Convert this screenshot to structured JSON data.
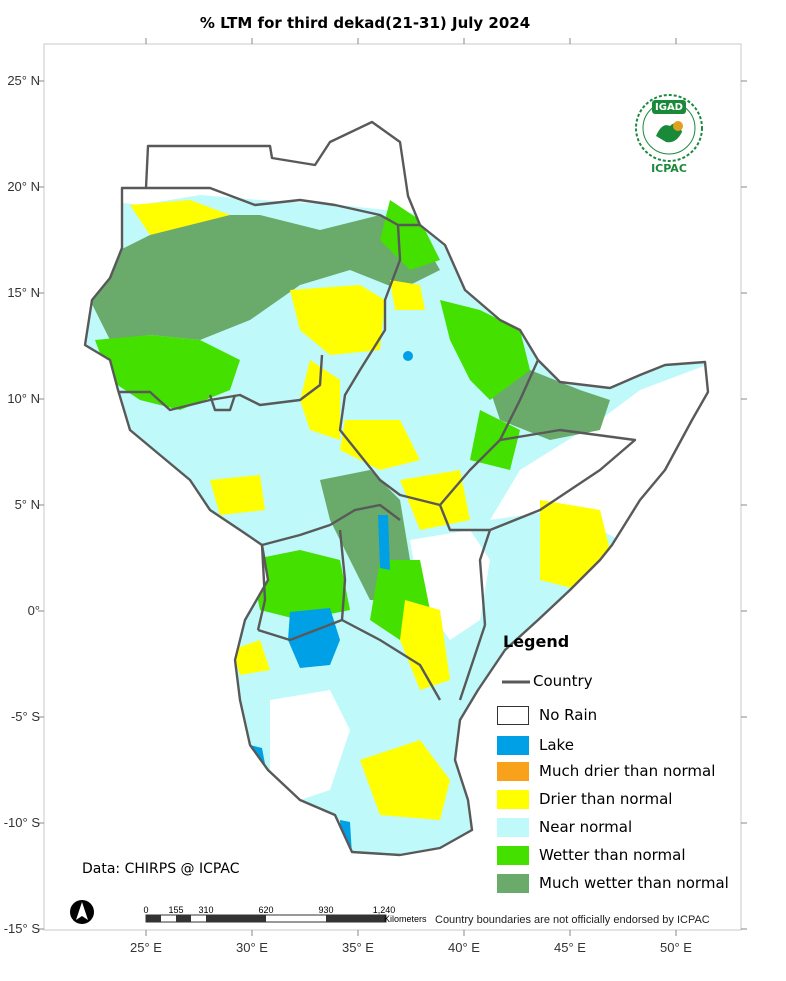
{
  "title": "% LTM  for  third dekad(21-31) July 2024",
  "lat_labels": [
    "25° N",
    "20° N",
    "15° N",
    "10° N",
    "5° N",
    "0°",
    "-5° S",
    "-10° S",
    "-15° S"
  ],
  "lon_labels": [
    "25° E",
    "30° E",
    "35° E",
    "40° E",
    "45° E",
    "50° E"
  ],
  "legend": {
    "title": "Legend",
    "country_label": "Country",
    "items": [
      {
        "label": "No Rain",
        "color": "#ffffff"
      },
      {
        "label": "Lake",
        "color": "#00a0e6"
      },
      {
        "label": "Much drier than normal",
        "color": "#f7a21a"
      },
      {
        "label": "Drier than normal",
        "color": "#ffff00"
      },
      {
        "label": "Near normal",
        "color": "#bff9f9"
      },
      {
        "label": "Wetter than normal",
        "color": "#44e000"
      },
      {
        "label": "Much wetter than normal",
        "color": "#6aaa6a"
      }
    ]
  },
  "source": "Data: CHIRPS @ ICPAC",
  "disclaimer": "Country boundaries are not officially endorsed by ICPAC",
  "scale": {
    "labels": [
      "0",
      "155",
      "310",
      "620",
      "930",
      "1,240"
    ],
    "unit": "Kilometers"
  },
  "logo": {
    "top": "IGAD",
    "bottom": "ICPAC"
  },
  "colors": {
    "border": "#595959",
    "near": "#bff9f9",
    "wet": "#44e000",
    "much_wet": "#6aaa6a",
    "dry": "#ffff00",
    "lake": "#00a0e6"
  }
}
